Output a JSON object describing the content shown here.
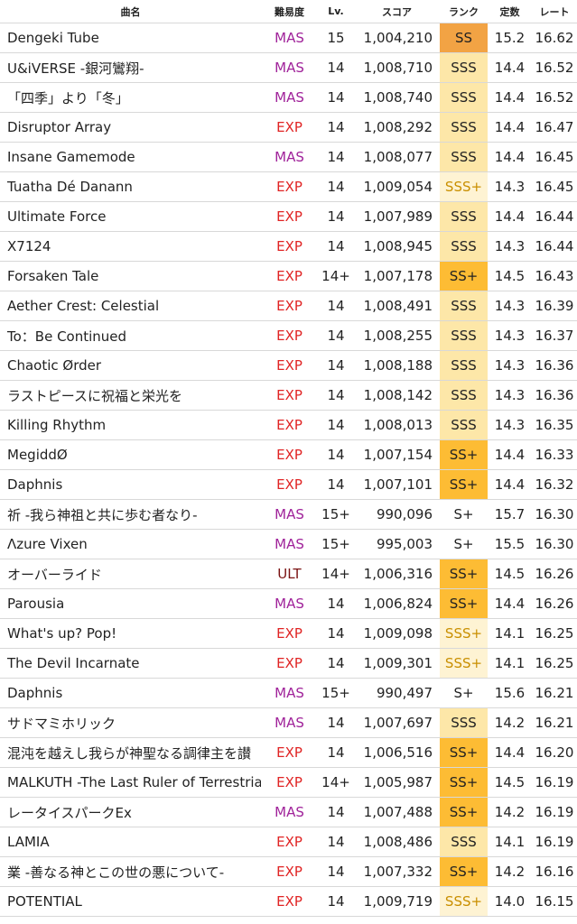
{
  "headers": [
    "曲名",
    "難易度",
    "Lv.",
    "スコア",
    "ランク",
    "定数",
    "レート"
  ],
  "colors": {
    "MAS": "#a0239a",
    "EXP": "#e02424",
    "ULT": "#7a1212",
    "SS_bg": "#f2a344",
    "SS+_bg": "#fdbc34",
    "SSS_bg": "#fde7a8",
    "SSS+_bg": "#fef3d3",
    "SSS+_text": "#c98f00"
  },
  "rows": [
    {
      "title": "Dengeki Tube",
      "diff": "MAS",
      "lv": "15",
      "score": "1,004,210",
      "rank": "SS",
      "const": "15.2",
      "rate": "16.62"
    },
    {
      "title": "U&iVERSE -銀河鸞翔-",
      "diff": "MAS",
      "lv": "14",
      "score": "1,008,710",
      "rank": "SSS",
      "const": "14.4",
      "rate": "16.52"
    },
    {
      "title": "「四季」より「冬」",
      "diff": "MAS",
      "lv": "14",
      "score": "1,008,740",
      "rank": "SSS",
      "const": "14.4",
      "rate": "16.52"
    },
    {
      "title": "Disruptor Array",
      "diff": "EXP",
      "lv": "14",
      "score": "1,008,292",
      "rank": "SSS",
      "const": "14.4",
      "rate": "16.47"
    },
    {
      "title": "Insane Gamemode",
      "diff": "MAS",
      "lv": "14",
      "score": "1,008,077",
      "rank": "SSS",
      "const": "14.4",
      "rate": "16.45"
    },
    {
      "title": "Tuatha Dé Danann",
      "diff": "EXP",
      "lv": "14",
      "score": "1,009,054",
      "rank": "SSS+",
      "const": "14.3",
      "rate": "16.45"
    },
    {
      "title": "Ultimate Force",
      "diff": "EXP",
      "lv": "14",
      "score": "1,007,989",
      "rank": "SSS",
      "const": "14.4",
      "rate": "16.44"
    },
    {
      "title": "X7124",
      "diff": "EXP",
      "lv": "14",
      "score": "1,008,945",
      "rank": "SSS",
      "const": "14.3",
      "rate": "16.44"
    },
    {
      "title": "Forsaken Tale",
      "diff": "EXP",
      "lv": "14+",
      "score": "1,007,178",
      "rank": "SS+",
      "const": "14.5",
      "rate": "16.43"
    },
    {
      "title": "Aether Crest: Celestial",
      "diff": "EXP",
      "lv": "14",
      "score": "1,008,491",
      "rank": "SSS",
      "const": "14.3",
      "rate": "16.39"
    },
    {
      "title": "To：Be Continued",
      "diff": "EXP",
      "lv": "14",
      "score": "1,008,255",
      "rank": "SSS",
      "const": "14.3",
      "rate": "16.37"
    },
    {
      "title": "Chaotic Ørder",
      "diff": "EXP",
      "lv": "14",
      "score": "1,008,188",
      "rank": "SSS",
      "const": "14.3",
      "rate": "16.36"
    },
    {
      "title": "ラストピースに祝福と栄光を",
      "diff": "EXP",
      "lv": "14",
      "score": "1,008,142",
      "rank": "SSS",
      "const": "14.3",
      "rate": "16.36"
    },
    {
      "title": "Killing Rhythm",
      "diff": "EXP",
      "lv": "14",
      "score": "1,008,013",
      "rank": "SSS",
      "const": "14.3",
      "rate": "16.35"
    },
    {
      "title": "MegiddØ",
      "diff": "EXP",
      "lv": "14",
      "score": "1,007,154",
      "rank": "SS+",
      "const": "14.4",
      "rate": "16.33"
    },
    {
      "title": "Daphnis",
      "diff": "EXP",
      "lv": "14",
      "score": "1,007,101",
      "rank": "SS+",
      "const": "14.4",
      "rate": "16.32"
    },
    {
      "title": "祈 -我ら神祖と共に歩む者なり-",
      "diff": "MAS",
      "lv": "15+",
      "score": "990,096",
      "rank": "S+",
      "const": "15.7",
      "rate": "16.30"
    },
    {
      "title": "Λzure Vixen",
      "diff": "MAS",
      "lv": "15+",
      "score": "995,003",
      "rank": "S+",
      "const": "15.5",
      "rate": "16.30"
    },
    {
      "title": "オーバーライド",
      "diff": "ULT",
      "lv": "14+",
      "score": "1,006,316",
      "rank": "SS+",
      "const": "14.5",
      "rate": "16.26"
    },
    {
      "title": "Parousia",
      "diff": "MAS",
      "lv": "14",
      "score": "1,006,824",
      "rank": "SS+",
      "const": "14.4",
      "rate": "16.26"
    },
    {
      "title": "What's up? Pop!",
      "diff": "EXP",
      "lv": "14",
      "score": "1,009,098",
      "rank": "SSS+",
      "const": "14.1",
      "rate": "16.25"
    },
    {
      "title": "The Devil Incarnate",
      "diff": "EXP",
      "lv": "14",
      "score": "1,009,301",
      "rank": "SSS+",
      "const": "14.1",
      "rate": "16.25"
    },
    {
      "title": "Daphnis",
      "diff": "MAS",
      "lv": "15+",
      "score": "990,497",
      "rank": "S+",
      "const": "15.6",
      "rate": "16.21"
    },
    {
      "title": "サドマミホリック",
      "diff": "MAS",
      "lv": "14",
      "score": "1,007,697",
      "rank": "SSS",
      "const": "14.2",
      "rate": "16.21"
    },
    {
      "title": "混沌を越えし我らが神聖なる調律主を讃",
      "diff": "EXP",
      "lv": "14",
      "score": "1,006,516",
      "rank": "SS+",
      "const": "14.4",
      "rate": "16.20"
    },
    {
      "title": "MALKUTH -The Last Ruler of Terrestrial",
      "diff": "EXP",
      "lv": "14+",
      "score": "1,005,987",
      "rank": "SS+",
      "const": "14.5",
      "rate": "16.19"
    },
    {
      "title": "レータイスパークEx",
      "diff": "MAS",
      "lv": "14",
      "score": "1,007,488",
      "rank": "SS+",
      "const": "14.2",
      "rate": "16.19"
    },
    {
      "title": "LAMIA",
      "diff": "EXP",
      "lv": "14",
      "score": "1,008,486",
      "rank": "SSS",
      "const": "14.1",
      "rate": "16.19"
    },
    {
      "title": "業 -善なる神とこの世の悪について-",
      "diff": "EXP",
      "lv": "14",
      "score": "1,007,332",
      "rank": "SS+",
      "const": "14.2",
      "rate": "16.16"
    },
    {
      "title": "POTENTIAL",
      "diff": "EXP",
      "lv": "14",
      "score": "1,009,719",
      "rank": "SSS+",
      "const": "14.0",
      "rate": "16.15"
    }
  ]
}
